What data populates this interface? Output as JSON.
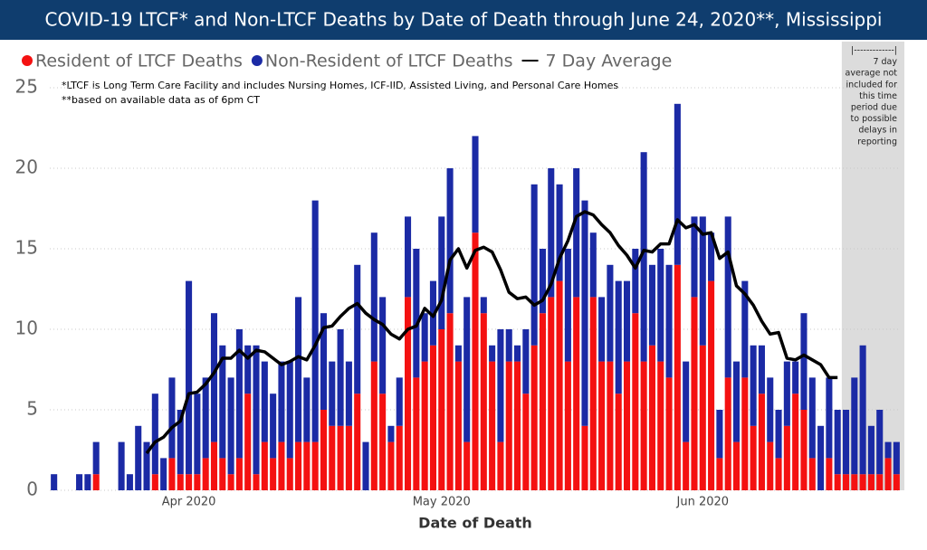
{
  "chart_data": {
    "type": "bar",
    "stacked": true,
    "title": "COVID-19 LTCF* and Non-LTCF Deaths by Date of Death through June 24, 2020**, Mississippi",
    "notes": [
      "*LTCF is Long Term Care Facility and includes Nursing Homes, ICF-IID, Assisted Living, and Personal Care Homes",
      "**based on available data as of 6pm CT"
    ],
    "shaded_note": [
      "|-------------|",
      "7 day",
      "average not",
      "included for",
      "this time",
      "period due",
      "to possible",
      "delays in",
      "reporting"
    ],
    "x_label": "Date of Death",
    "categories": [
      null,
      null,
      null,
      null,
      null,
      null,
      null,
      null,
      null,
      null,
      null,
      null,
      null,
      null,
      null,
      null,
      "Apr 2020",
      null,
      null,
      null,
      null,
      null,
      null,
      null,
      null,
      null,
      null,
      null,
      null,
      null,
      null,
      null,
      null,
      null,
      null,
      null,
      null,
      null,
      null,
      null,
      null,
      null,
      null,
      null,
      null,
      null,
      "May 2020",
      null,
      null,
      null,
      null,
      null,
      null,
      null,
      null,
      null,
      null,
      null,
      null,
      null,
      null,
      null,
      null,
      null,
      null,
      null,
      null,
      null,
      null,
      null,
      null,
      null,
      null,
      null,
      null,
      null,
      null,
      "Jun 2020",
      null,
      null,
      null,
      null,
      null,
      null,
      null,
      null,
      null,
      null,
      null,
      null,
      null,
      null,
      null,
      null,
      null,
      null,
      null,
      null,
      null,
      null,
      null
    ],
    "ylim": [
      0,
      25
    ],
    "yticks": [
      0,
      5,
      10,
      15,
      20,
      25
    ],
    "grid": true,
    "series": [
      {
        "name": "Resident of LTCF Deaths",
        "color": "#f41111",
        "type": "bar",
        "values": [
          0,
          0,
          0,
          0,
          0,
          1,
          0,
          0,
          0,
          0,
          0,
          0,
          1,
          0,
          2,
          1,
          1,
          1,
          2,
          3,
          2,
          1,
          2,
          6,
          1,
          3,
          2,
          3,
          2,
          3,
          3,
          3,
          5,
          4,
          4,
          4,
          6,
          0,
          8,
          6,
          3,
          4,
          12,
          7,
          8,
          9,
          10,
          11,
          8,
          3,
          16,
          11,
          8,
          3,
          8,
          8,
          6,
          9,
          11,
          12,
          13,
          8,
          12,
          4,
          12,
          8,
          8,
          6,
          8,
          11,
          8,
          9,
          8,
          7,
          14,
          3,
          12,
          9,
          13,
          2,
          7,
          3,
          7,
          4,
          6,
          3,
          2,
          4,
          6,
          5,
          2,
          0,
          2,
          1,
          1,
          1,
          1,
          1,
          1,
          2,
          1
        ]
      },
      {
        "name": "Non-Resident of LTCF Deaths",
        "color": "#1b2aa5",
        "type": "bar",
        "values": [
          1,
          0,
          0,
          1,
          1,
          2,
          0,
          0,
          3,
          1,
          4,
          3,
          5,
          2,
          5,
          4,
          12,
          5,
          5,
          8,
          7,
          6,
          8,
          3,
          8,
          5,
          4,
          5,
          6,
          9,
          4,
          15,
          6,
          4,
          6,
          4,
          8,
          3,
          8,
          6,
          1,
          3,
          5,
          8,
          3,
          4,
          7,
          9,
          1,
          9,
          6,
          1,
          1,
          7,
          2,
          1,
          4,
          10,
          4,
          8,
          6,
          7,
          8,
          14,
          4,
          4,
          6,
          7,
          5,
          4,
          13,
          5,
          7,
          7,
          10,
          5,
          5,
          8,
          3,
          3,
          10,
          5,
          6,
          5,
          3,
          4,
          3,
          4,
          2,
          6,
          5,
          4,
          5,
          4,
          4,
          6,
          8,
          3,
          4,
          1,
          2
        ]
      },
      {
        "name": "7 Day Average",
        "color": "#000000",
        "type": "line",
        "values": [
          null,
          null,
          null,
          null,
          null,
          null,
          null,
          null,
          null,
          null,
          null,
          2.3,
          3,
          3.3,
          3.9,
          4.3,
          6,
          6.1,
          6.6,
          7.3,
          8.2,
          8.2,
          8.7,
          8.2,
          8.7,
          8.6,
          8.2,
          7.8,
          8,
          8.3,
          8.1,
          9,
          10.1,
          10.2,
          10.8,
          11.3,
          11.6,
          11,
          10.6,
          10.3,
          9.7,
          9.4,
          10,
          10.2,
          11.3,
          10.8,
          11.8,
          14.3,
          15,
          13.8,
          14.9,
          15.1,
          14.8,
          13.7,
          12.3,
          11.9,
          12,
          11.5,
          11.8,
          12.8,
          14.4,
          15.5,
          17,
          17.3,
          17.1,
          16.5,
          16,
          15.2,
          14.6,
          13.8,
          14.9,
          14.8,
          15.3,
          15.3,
          16.8,
          16.3,
          16.5,
          15.9,
          16,
          14.4,
          14.8,
          12.7,
          12.2,
          11.5,
          10.5,
          9.7,
          9.8,
          8.2,
          8.1,
          8.4,
          8.1,
          7.8,
          7,
          7,
          null,
          null,
          null,
          null,
          null,
          null,
          null
        ]
      }
    ]
  }
}
